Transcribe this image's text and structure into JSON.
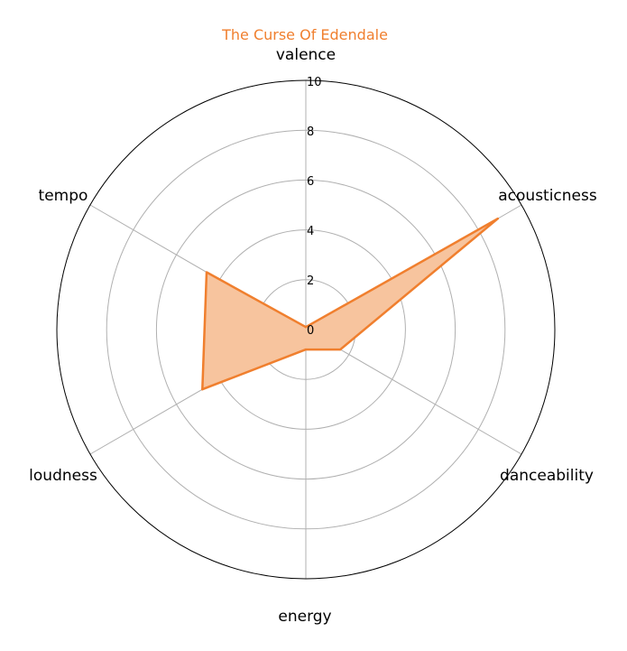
{
  "chart_data": {
    "type": "radar",
    "title": "The Curse Of Edendale",
    "axes": [
      "valence",
      "acousticness",
      "danceability",
      "energy",
      "loudness",
      "tempo"
    ],
    "radial_ticks": [
      "0",
      "2",
      "4",
      "6",
      "8",
      "10"
    ],
    "rlim": [
      0,
      10
    ],
    "grid": true,
    "series": [
      {
        "values": [
          0.1,
          8.9,
          1.6,
          0.8,
          4.8,
          4.6
        ],
        "color": "#f07f2e",
        "fill_color": "#f7c49e"
      }
    ]
  }
}
